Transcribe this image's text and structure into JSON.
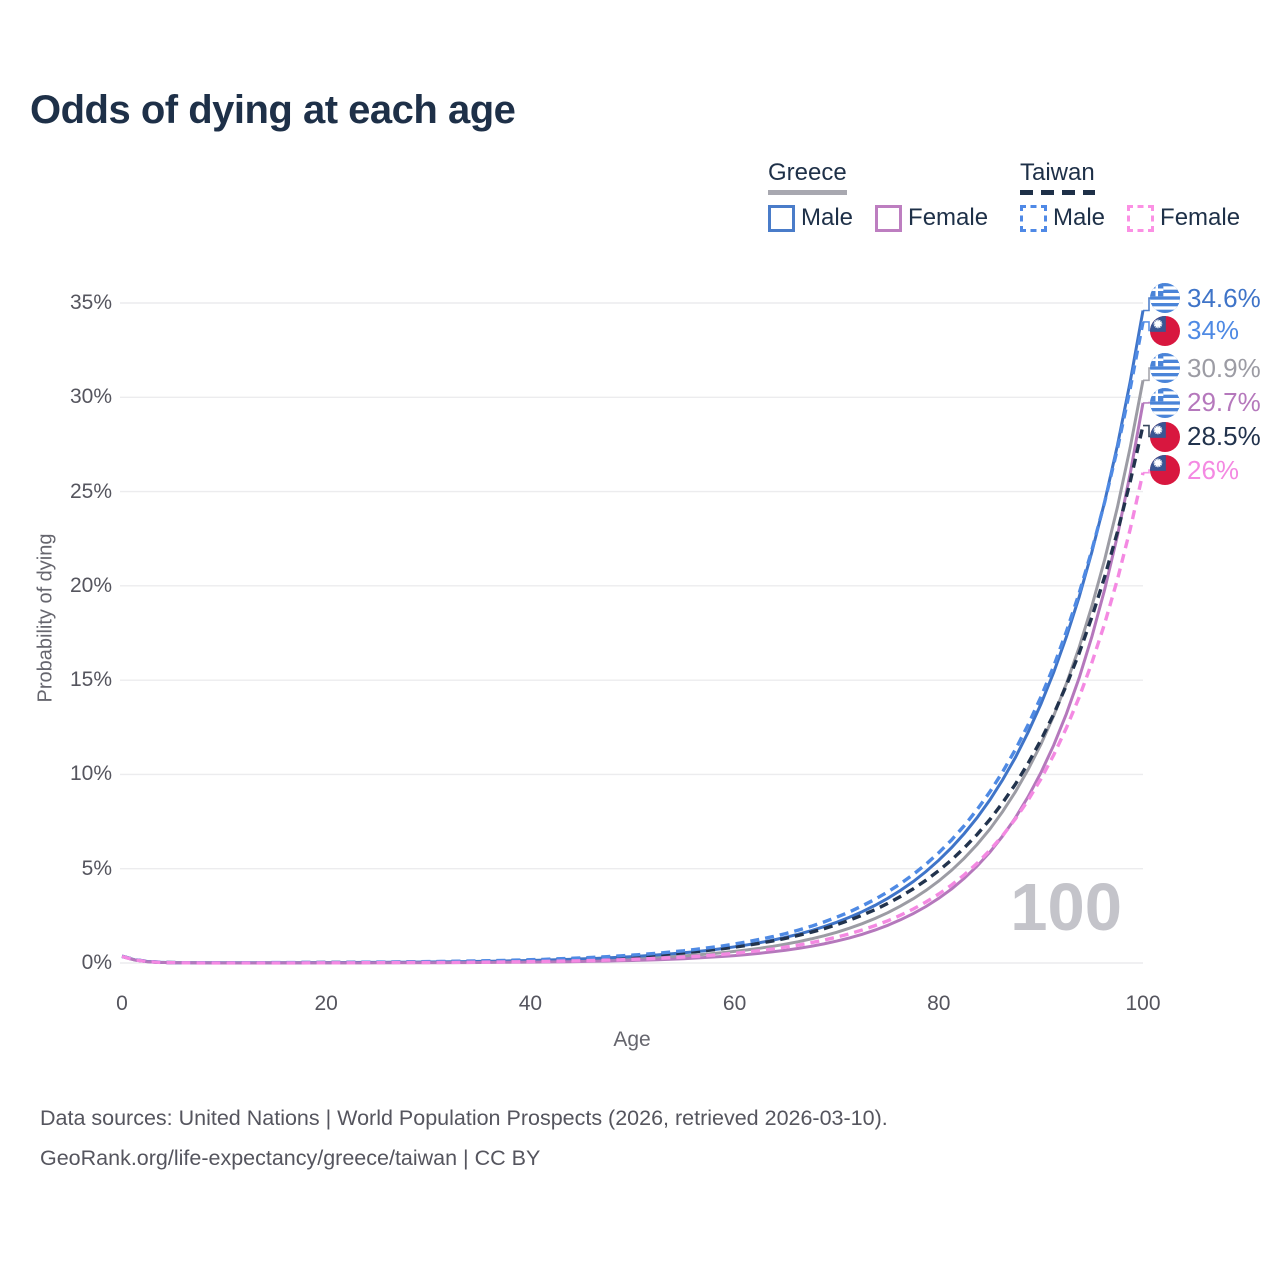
{
  "title": "Odds of dying at each age",
  "legend": {
    "groups": [
      {
        "label": "Greece",
        "line_style": "solid",
        "underline_color": "#a8a8b0",
        "items": [
          {
            "label": "Male",
            "color": "#4a7cc9"
          },
          {
            "label": "Female",
            "color": "#bd7ec0"
          }
        ]
      },
      {
        "label": "Taiwan",
        "line_style": "dashed",
        "underline_color": "#1e3048",
        "items": [
          {
            "label": "Male",
            "color": "#4f89e6"
          },
          {
            "label": "Female",
            "color": "#fb90e4"
          }
        ]
      }
    ]
  },
  "axes": {
    "y_label": "Probability of dying",
    "x_label": "Age",
    "y_ticks": [
      {
        "v": 0,
        "label": "0%"
      },
      {
        "v": 5,
        "label": "5%"
      },
      {
        "v": 10,
        "label": "10%"
      },
      {
        "v": 15,
        "label": "15%"
      },
      {
        "v": 20,
        "label": "20%"
      },
      {
        "v": 25,
        "label": "25%"
      },
      {
        "v": 30,
        "label": "30%"
      },
      {
        "v": 35,
        "label": "35%"
      }
    ],
    "x_ticks": [
      {
        "v": 0,
        "label": "0"
      },
      {
        "v": 20,
        "label": "20"
      },
      {
        "v": 40,
        "label": "40"
      },
      {
        "v": 60,
        "label": "60"
      },
      {
        "v": 80,
        "label": "80"
      },
      {
        "v": 100,
        "label": "100"
      }
    ]
  },
  "watermark": "100",
  "end_labels": [
    {
      "series": "greece_male",
      "flag": "greece",
      "value": "34.6%",
      "color": "#3f74c8"
    },
    {
      "series": "taiwan_male",
      "flag": "taiwan",
      "value": "34%",
      "color": "#4f8ae4"
    },
    {
      "series": "greece_total",
      "flag": "greece",
      "value": "30.9%",
      "color": "#9c9ca4"
    },
    {
      "series": "greece_female",
      "flag": "greece",
      "value": "29.7%",
      "color": "#b578bc"
    },
    {
      "series": "taiwan_total",
      "flag": "taiwan",
      "value": "28.5%",
      "color": "#22334d"
    },
    {
      "series": "taiwan_female",
      "flag": "taiwan",
      "value": "26%",
      "color": "#f489e2"
    }
  ],
  "footer": {
    "line1": "Data sources: United Nations | World Population Prospects (2026, retrieved 2026-03-10).",
    "line2": "GeoRank.org/life-expectancy/greece/taiwan | CC BY"
  },
  "chart_data": {
    "type": "line",
    "title": "Odds of dying at each age",
    "xlabel": "Age",
    "ylabel": "Probability of dying",
    "unit": "percent",
    "xlim": [
      0,
      100
    ],
    "ylim": [
      0,
      35
    ],
    "grid": "horizontal",
    "legend_position": "top-right",
    "x": [
      0,
      5,
      10,
      15,
      20,
      25,
      30,
      35,
      40,
      45,
      50,
      55,
      60,
      65,
      70,
      75,
      80,
      85,
      90,
      95,
      100
    ],
    "series": [
      {
        "name": "greece_total",
        "country": "Greece",
        "sex": "both",
        "style": "solid",
        "color": "#9c9ca4",
        "end_value": 30.9,
        "values": [
          0.352,
          0.015,
          0.005,
          0.007,
          0.012,
          0.02,
          0.032,
          0.053,
          0.086,
          0.141,
          0.23,
          0.376,
          0.613,
          1.0,
          1.63,
          2.67,
          4.35,
          7.1,
          11.6,
          18.93,
          30.9
        ]
      },
      {
        "name": "greece_male",
        "country": "Greece",
        "sex": "male",
        "style": "solid",
        "color": "#3f74c8",
        "end_value": 34.6,
        "values": [
          0.353,
          0.018,
          0.009,
          0.013,
          0.021,
          0.034,
          0.054,
          0.085,
          0.135,
          0.215,
          0.341,
          0.541,
          0.858,
          1.362,
          2.16,
          3.43,
          5.45,
          8.65,
          13.73,
          21.8,
          34.6
        ]
      },
      {
        "name": "greece_female",
        "country": "Greece",
        "sex": "female",
        "style": "solid",
        "color": "#b578bc",
        "end_value": 29.7,
        "values": [
          0.351,
          0.014,
          0.002,
          0.003,
          0.005,
          0.009,
          0.015,
          0.027,
          0.046,
          0.078,
          0.134,
          0.23,
          0.395,
          0.678,
          1.16,
          2.0,
          3.43,
          5.88,
          10.09,
          17.31,
          29.7
        ]
      },
      {
        "name": "taiwan_total",
        "country": "Taiwan",
        "sex": "both",
        "style": "dashed",
        "color": "#22334d",
        "end_value": 28.5,
        "values": [
          0.354,
          0.019,
          0.01,
          0.016,
          0.025,
          0.039,
          0.06,
          0.093,
          0.145,
          0.225,
          0.35,
          0.543,
          0.843,
          1.31,
          2.03,
          3.16,
          4.9,
          7.61,
          11.82,
          18.35,
          28.5
        ]
      },
      {
        "name": "taiwan_male",
        "country": "Taiwan",
        "sex": "male",
        "style": "dashed",
        "color": "#4f8ae4",
        "end_value": 34,
        "values": [
          0.355,
          0.021,
          0.012,
          0.019,
          0.03,
          0.046,
          0.072,
          0.112,
          0.173,
          0.269,
          0.418,
          0.648,
          1.01,
          1.56,
          2.43,
          3.77,
          5.85,
          9.08,
          14.1,
          21.9,
          34
        ]
      },
      {
        "name": "taiwan_female",
        "country": "Taiwan",
        "sex": "female",
        "style": "dashed",
        "color": "#f489e2",
        "end_value": 26,
        "values": [
          0.351,
          0.015,
          0.004,
          0.006,
          0.01,
          0.017,
          0.027,
          0.044,
          0.073,
          0.119,
          0.194,
          0.316,
          0.516,
          0.842,
          1.37,
          2.24,
          3.66,
          5.98,
          9.76,
          15.93,
          26
        ]
      }
    ]
  }
}
